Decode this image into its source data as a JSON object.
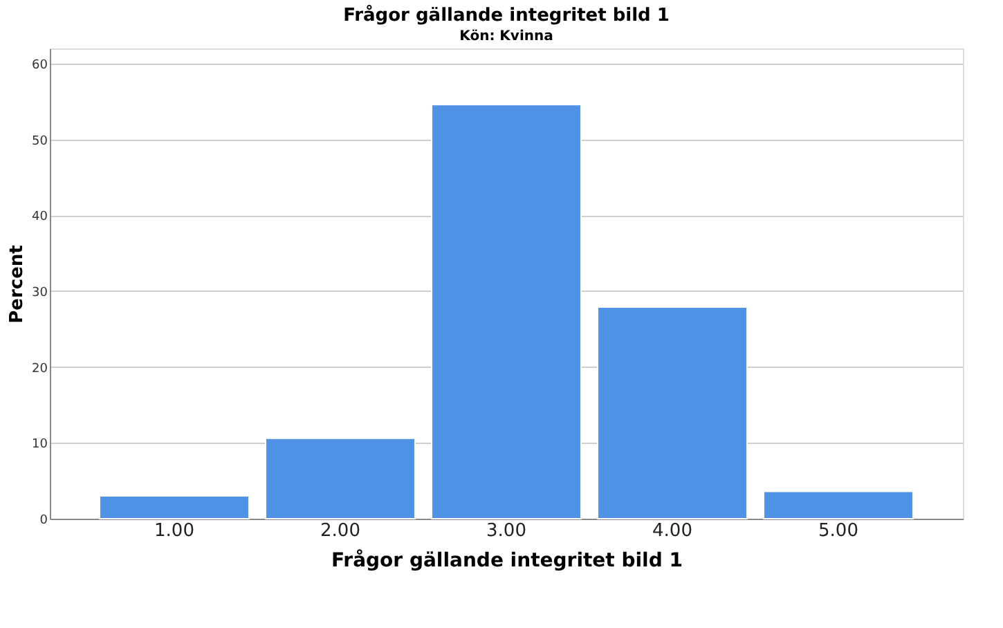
{
  "chart_data": {
    "type": "bar",
    "title": "Frågor gällande integritet bild 1",
    "subtitle": "Kön: Kvinna",
    "xlabel": "Frågor gällande integritet bild 1",
    "ylabel": "Percent",
    "categories": [
      "1.00",
      "2.00",
      "3.00",
      "4.00",
      "5.00"
    ],
    "values": [
      3.0,
      10.6,
      54.6,
      27.9,
      3.6
    ],
    "color": "#4f92e6",
    "ylim": [
      0,
      62
    ],
    "yticks": [
      0,
      10,
      20,
      30,
      40,
      50,
      60
    ],
    "grid": "y"
  }
}
